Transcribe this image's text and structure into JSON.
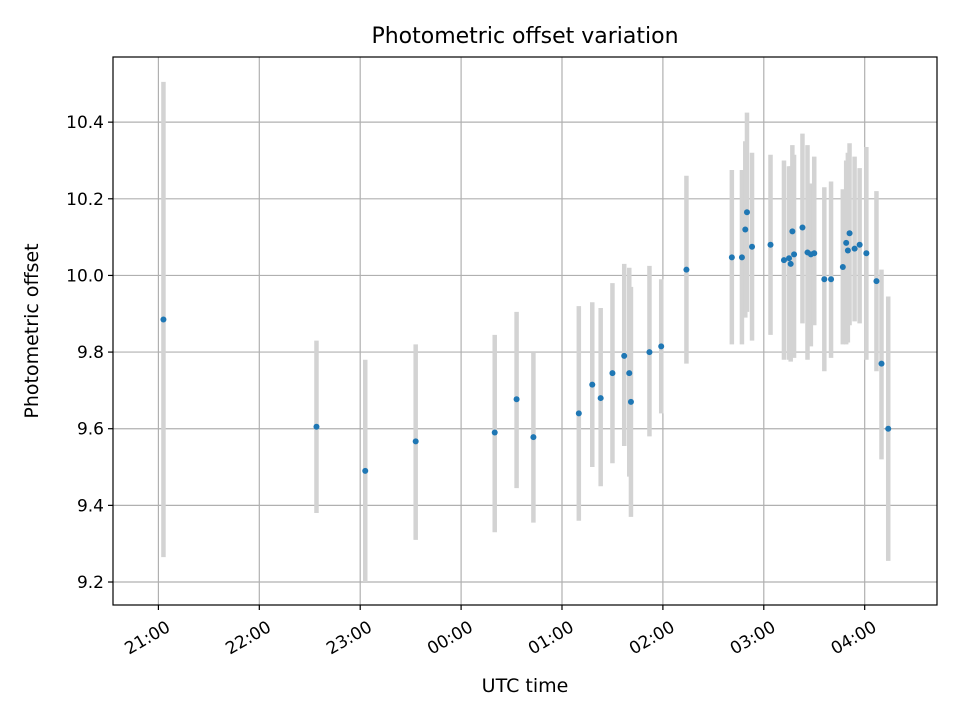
{
  "chart_data": {
    "type": "scatter",
    "title": "Photometric offset variation",
    "xlabel": "UTC time",
    "ylabel": "Photometric offset",
    "x_unit": "minutes relative to 00:00 UTC",
    "xlim": [
      -207,
      283
    ],
    "ylim": [
      9.14,
      10.57
    ],
    "x_tick_values": [
      -180,
      -120,
      -60,
      0,
      60,
      120,
      180,
      240
    ],
    "x_ticks": [
      "21:00",
      "22:00",
      "23:00",
      "00:00",
      "01:00",
      "02:00",
      "03:00",
      "04:00"
    ],
    "y_tick_values": [
      9.2,
      9.4,
      9.6,
      9.8,
      10.0,
      10.2,
      10.4
    ],
    "y_ticks": [
      "9.2",
      "9.4",
      "9.6",
      "9.8",
      "10.0",
      "10.2",
      "10.4"
    ],
    "grid": true,
    "colors": {
      "point": "#1f77b4",
      "errorbar": "#d3d3d3",
      "grid": "#b0b0b0"
    },
    "series": [
      {
        "points": [
          {
            "x": -177,
            "y": 9.885,
            "ylo": 9.265,
            "yhi": 10.505
          },
          {
            "x": -86,
            "y": 9.605,
            "ylo": 9.38,
            "yhi": 9.83
          },
          {
            "x": -57,
            "y": 9.49,
            "ylo": 9.2,
            "yhi": 9.78
          },
          {
            "x": -27,
            "y": 9.567,
            "ylo": 9.31,
            "yhi": 9.82
          },
          {
            "x": 20,
            "y": 9.59,
            "ylo": 9.33,
            "yhi": 9.845
          },
          {
            "x": 33,
            "y": 9.677,
            "ylo": 9.445,
            "yhi": 9.905
          },
          {
            "x": 43,
            "y": 9.578,
            "ylo": 9.355,
            "yhi": 9.8
          },
          {
            "x": 70,
            "y": 9.64,
            "ylo": 9.36,
            "yhi": 9.92
          },
          {
            "x": 78,
            "y": 9.715,
            "ylo": 9.5,
            "yhi": 9.93
          },
          {
            "x": 83,
            "y": 9.68,
            "ylo": 9.45,
            "yhi": 9.915
          },
          {
            "x": 90,
            "y": 9.745,
            "ylo": 9.51,
            "yhi": 9.98
          },
          {
            "x": 97,
            "y": 9.79,
            "ylo": 9.555,
            "yhi": 10.03
          },
          {
            "x": 100,
            "y": 9.745,
            "ylo": 9.475,
            "yhi": 10.02
          },
          {
            "x": 101,
            "y": 9.67,
            "ylo": 9.37,
            "yhi": 9.97
          },
          {
            "x": 112,
            "y": 9.8,
            "ylo": 9.58,
            "yhi": 10.025
          },
          {
            "x": 119,
            "y": 9.815,
            "ylo": 9.64,
            "yhi": 9.99
          },
          {
            "x": 134,
            "y": 10.015,
            "ylo": 9.77,
            "yhi": 10.26
          },
          {
            "x": 161,
            "y": 10.047,
            "ylo": 9.82,
            "yhi": 10.275
          },
          {
            "x": 167,
            "y": 10.047,
            "ylo": 9.82,
            "yhi": 10.275
          },
          {
            "x": 169,
            "y": 10.12,
            "ylo": 9.89,
            "yhi": 10.35
          },
          {
            "x": 170,
            "y": 10.165,
            "ylo": 9.905,
            "yhi": 10.425
          },
          {
            "x": 173,
            "y": 10.075,
            "ylo": 9.83,
            "yhi": 10.32
          },
          {
            "x": 184,
            "y": 10.08,
            "ylo": 9.845,
            "yhi": 10.315
          },
          {
            "x": 192,
            "y": 10.04,
            "ylo": 9.78,
            "yhi": 10.3
          },
          {
            "x": 195,
            "y": 10.045,
            "ylo": 9.78,
            "yhi": 10.285
          },
          {
            "x": 196,
            "y": 10.03,
            "ylo": 9.775,
            "yhi": 10.285
          },
          {
            "x": 197,
            "y": 10.115,
            "ylo": 9.89,
            "yhi": 10.34
          },
          {
            "x": 198,
            "y": 10.055,
            "ylo": 9.785,
            "yhi": 10.315
          },
          {
            "x": 203,
            "y": 10.125,
            "ylo": 9.875,
            "yhi": 10.37
          },
          {
            "x": 206,
            "y": 10.06,
            "ylo": 9.78,
            "yhi": 10.34
          },
          {
            "x": 208,
            "y": 10.055,
            "ylo": 9.815,
            "yhi": 10.24
          },
          {
            "x": 210,
            "y": 10.058,
            "ylo": 9.87,
            "yhi": 10.31
          },
          {
            "x": 216,
            "y": 9.99,
            "ylo": 9.75,
            "yhi": 10.23
          },
          {
            "x": 220,
            "y": 9.99,
            "ylo": 9.785,
            "yhi": 10.245
          },
          {
            "x": 227,
            "y": 10.022,
            "ylo": 9.82,
            "yhi": 10.225
          },
          {
            "x": 229,
            "y": 10.085,
            "ylo": 9.82,
            "yhi": 10.3
          },
          {
            "x": 230,
            "y": 10.065,
            "ylo": 9.825,
            "yhi": 10.32
          },
          {
            "x": 231,
            "y": 10.11,
            "ylo": 9.87,
            "yhi": 10.345
          },
          {
            "x": 234,
            "y": 10.07,
            "ylo": 9.88,
            "yhi": 10.31
          },
          {
            "x": 237,
            "y": 10.08,
            "ylo": 9.875,
            "yhi": 10.28
          },
          {
            "x": 241,
            "y": 10.058,
            "ylo": 9.78,
            "yhi": 10.335
          },
          {
            "x": 247,
            "y": 9.985,
            "ylo": 9.75,
            "yhi": 10.22
          },
          {
            "x": 250,
            "y": 9.77,
            "ylo": 9.52,
            "yhi": 10.015
          },
          {
            "x": 254,
            "y": 9.6,
            "ylo": 9.255,
            "yhi": 9.945
          }
        ]
      }
    ]
  }
}
